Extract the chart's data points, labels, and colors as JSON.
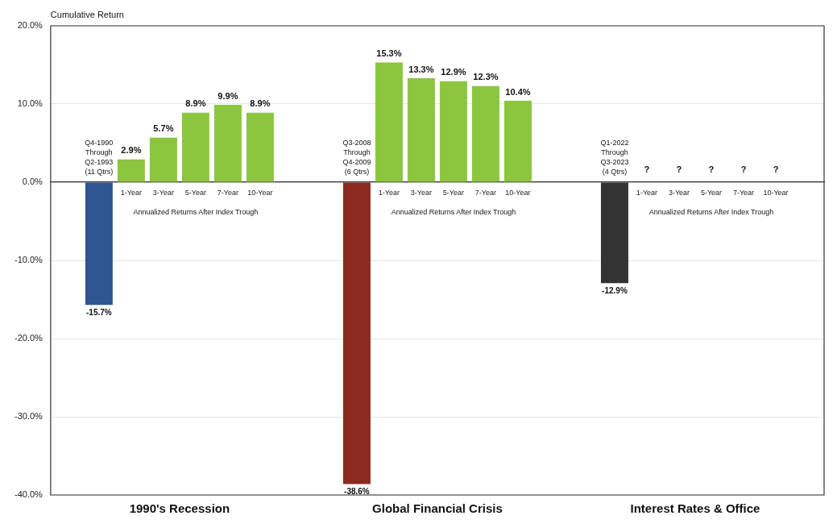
{
  "chart_data": {
    "type": "bar",
    "ylabel": "Cumulative Return",
    "categories": [
      null,
      null,
      "1-Year",
      "3-Year",
      "5-Year",
      "7-Year",
      "10-Year",
      null,
      null,
      null,
      "1-Year",
      "3-Year",
      "5-Year",
      "7-Year",
      "10-Year",
      null,
      null,
      null,
      "1-Year",
      "3-Year",
      "5-Year",
      "7-Year",
      "10-Year",
      null
    ],
    "values": [
      null,
      -15.7,
      2.9,
      5.7,
      8.9,
      9.9,
      8.9,
      null,
      null,
      -38.6,
      15.3,
      13.3,
      12.9,
      12.3,
      10.4,
      null,
      null,
      -12.9,
      null,
      null,
      null,
      null,
      null,
      null
    ],
    "colors": [
      null,
      "#2e5591",
      "#8cc63f",
      "#8cc63f",
      "#8cc63f",
      "#8cc63f",
      "#8cc63f",
      null,
      null,
      "#8b2a20",
      "#8cc63f",
      "#8cc63f",
      "#8cc63f",
      "#8cc63f",
      "#8cc63f",
      null,
      null,
      "#333333",
      null,
      null,
      null,
      null,
      null,
      null
    ],
    "value_labels": [
      null,
      "-15.7%",
      "2.9%",
      "5.7%",
      "8.9%",
      "9.9%",
      "8.9%",
      null,
      null,
      "-38.6%",
      "15.3%",
      "13.3%",
      "12.9%",
      "12.3%",
      "10.4%",
      null,
      null,
      "-12.9%",
      "?",
      "?",
      "?",
      "?",
      "?",
      null
    ],
    "ylim": [
      -40,
      20
    ],
    "yticks": [
      {
        "value": -40,
        "label": "-40.0%"
      },
      {
        "value": -30,
        "label": "-30.0%"
      },
      {
        "value": -20,
        "label": "-20.0%"
      },
      {
        "value": -10,
        "label": "-10.0%"
      },
      {
        "value": 0,
        "label": "0.0%"
      },
      {
        "value": 10,
        "label": "10.0%"
      },
      {
        "value": 20,
        "label": "20.0%"
      }
    ],
    "grid": "y",
    "annotations": [
      "Q4-1990\nThrough\nQ2-1993\n(11 Qtrs)",
      "Q3-2008\nThrough\nQ4-2009\n(6 Qtrs)",
      "Q1-2022\nThrough\nQ3-2023\n(4 Qtrs)",
      "Annualized Returns After Index Trough",
      "Annualized Returns After Index Trough",
      "Annualized Returns After Index Trough",
      "1990's Recession",
      "Global Financial Crisis",
      "Interest Rates & Office"
    ]
  }
}
